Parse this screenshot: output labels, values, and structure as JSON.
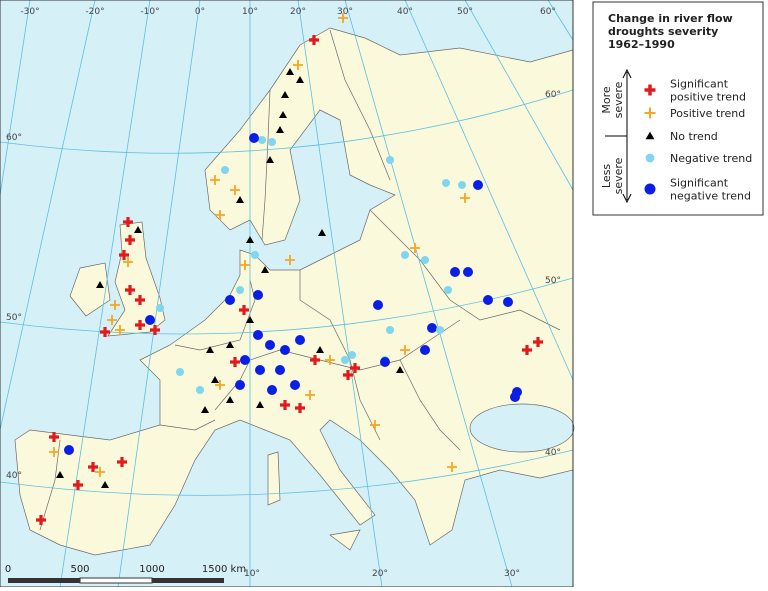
{
  "legend": {
    "title": [
      "Change in river flow",
      "droughts severity",
      "1962–1990"
    ],
    "more_severe": [
      "More",
      "severe"
    ],
    "less_severe": [
      "Less",
      "severe"
    ],
    "items": [
      {
        "symbol": "significant-positive",
        "label": [
          "Significant",
          "positive trend"
        ]
      },
      {
        "symbol": "positive",
        "label": [
          "Positive trend"
        ]
      },
      {
        "symbol": "no-trend",
        "label": [
          "No trend"
        ]
      },
      {
        "symbol": "negative",
        "label": [
          "Negative trend"
        ]
      },
      {
        "symbol": "significant-negative",
        "label": [
          "Significant",
          "negative trend"
        ]
      }
    ]
  },
  "graticule": {
    "top": [
      "-30°",
      "-20°",
      "-10°",
      "0°",
      "10°",
      "20°",
      "30°",
      "40°",
      "50°",
      "60°"
    ],
    "left": [
      "60°",
      "50°",
      "40°"
    ],
    "right": [
      "60°",
      "50°",
      "40°"
    ],
    "bottom": [
      "10°",
      "20°",
      "30°"
    ]
  },
  "scale_bar": {
    "labels": [
      "0",
      "500",
      "1000",
      "1500 km"
    ]
  }
}
